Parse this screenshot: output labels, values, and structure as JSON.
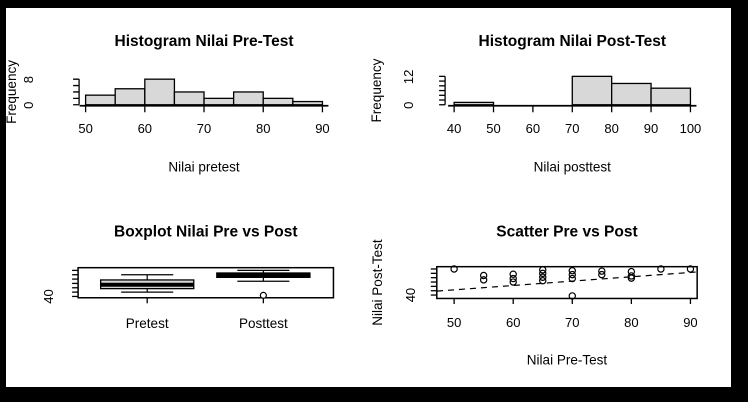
{
  "figure": {
    "frame_color": "#000000",
    "background_color": "#ffffff",
    "stroke_color": "#000000",
    "bar_fill_color": "#d8d8d8"
  },
  "chart_data": [
    {
      "id": "hist_pre",
      "type": "bar",
      "title": "Histogram Nilai Pre-Test",
      "xlabel": "Nilai pretest",
      "ylabel": "Frequency",
      "bin_start": 50,
      "bin_width": 5,
      "values": [
        3,
        5,
        8,
        4,
        2,
        4,
        2,
        1
      ],
      "categories": [
        "50-55",
        "55-60",
        "60-65",
        "65-70",
        "70-75",
        "75-80",
        "80-85",
        "85-90"
      ],
      "xticks": [
        50,
        60,
        70,
        80,
        90
      ],
      "ylim": [
        0,
        8
      ],
      "ytick_step": 2,
      "ytick_labels": [
        "0",
        "8"
      ],
      "grid": "off"
    },
    {
      "id": "hist_post",
      "type": "bar",
      "title": "Histogram Nilai Post-Test",
      "xlabel": "Nilai posttest",
      "ylabel": "Frequency",
      "bin_start": 40,
      "bin_width": 10,
      "values": [
        1,
        0,
        0,
        12,
        9,
        7
      ],
      "categories": [
        "40-50",
        "50-60",
        "60-70",
        "70-80",
        "80-90",
        "90-100"
      ],
      "xticks": [
        40,
        50,
        60,
        70,
        80,
        90,
        100
      ],
      "ylim": [
        0,
        12
      ],
      "ytick_step": 2,
      "ytick_labels": [
        "0",
        "12"
      ],
      "grid": "off"
    },
    {
      "id": "boxplot",
      "type": "boxplot",
      "title": "Boxplot Nilai Pre vs Post",
      "groups": [
        {
          "label": "Pretest",
          "min": 50,
          "q1": 58,
          "median": 67,
          "q3": 78,
          "max": 90,
          "outliers": []
        },
        {
          "label": "Posttest",
          "min": 75,
          "q1": 84,
          "median": 89,
          "q3": 94,
          "max": 100,
          "outliers": [
            42.5
          ]
        }
      ],
      "ylim": [
        40,
        100
      ],
      "ytick_step": 10,
      "ytick_labels": [
        "40"
      ],
      "grid": "off"
    },
    {
      "id": "scatter",
      "type": "scatter",
      "title": "Scatter Pre vs Post",
      "xlabel": "Nilai Pre-Test",
      "ylabel": "Nilai Post-Test",
      "points": [
        {
          "x": 50,
          "y": 100
        },
        {
          "x": 55,
          "y": 85
        },
        {
          "x": 55,
          "y": 75
        },
        {
          "x": 60,
          "y": 88
        },
        {
          "x": 60,
          "y": 78
        },
        {
          "x": 60,
          "y": 70
        },
        {
          "x": 65,
          "y": 98
        },
        {
          "x": 65,
          "y": 90
        },
        {
          "x": 65,
          "y": 81
        },
        {
          "x": 65,
          "y": 73
        },
        {
          "x": 70,
          "y": 96
        },
        {
          "x": 70,
          "y": 87
        },
        {
          "x": 70,
          "y": 78
        },
        {
          "x": 70,
          "y": 38
        },
        {
          "x": 75,
          "y": 95
        },
        {
          "x": 75,
          "y": 87
        },
        {
          "x": 80,
          "y": 94
        },
        {
          "x": 80,
          "y": 84
        },
        {
          "x": 80,
          "y": 79
        },
        {
          "x": 85,
          "y": 100
        },
        {
          "x": 90,
          "y": 100
        }
      ],
      "trend_line": {
        "style": "dashed",
        "x1": 47.1,
        "y1": 49.1,
        "x2": 91.1,
        "y2": 93.2
      },
      "xticks": [
        50,
        60,
        70,
        80,
        90
      ],
      "ylim": [
        40,
        100
      ],
      "ytick_step": 10,
      "ytick_labels": [
        "40"
      ],
      "grid": "off"
    }
  ]
}
